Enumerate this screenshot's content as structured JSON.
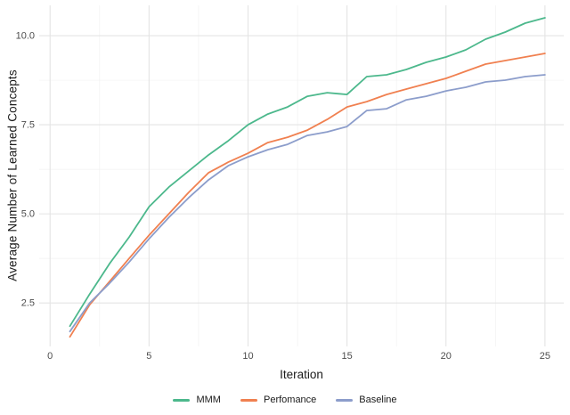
{
  "chart_data": {
    "type": "line",
    "title": "",
    "xlabel": "Iteration",
    "ylabel": "Average Number of Learned Concepts",
    "x": [
      1,
      2,
      3,
      4,
      5,
      6,
      7,
      8,
      9,
      10,
      11,
      12,
      13,
      14,
      15,
      16,
      17,
      18,
      19,
      20,
      21,
      22,
      23,
      24,
      25
    ],
    "series": [
      {
        "name": "MMM",
        "color": "#4cb88c",
        "values": [
          1.85,
          2.75,
          3.6,
          4.35,
          5.2,
          5.75,
          6.2,
          6.65,
          7.05,
          7.5,
          7.8,
          8.0,
          8.3,
          8.4,
          8.35,
          8.85,
          8.9,
          9.05,
          9.25,
          9.4,
          9.6,
          9.9,
          10.1,
          10.35,
          10.5
        ]
      },
      {
        "name": "Perfomance",
        "color": "#f08050",
        "values": [
          1.55,
          2.45,
          3.1,
          3.75,
          4.4,
          5.0,
          5.6,
          6.15,
          6.45,
          6.7,
          7.0,
          7.15,
          7.35,
          7.65,
          8.0,
          8.15,
          8.35,
          8.5,
          8.65,
          8.8,
          9.0,
          9.2,
          9.3,
          9.4,
          9.5
        ]
      },
      {
        "name": "Baseline",
        "color": "#8c9dcb",
        "values": [
          1.7,
          2.5,
          3.05,
          3.65,
          4.3,
          4.9,
          5.45,
          5.95,
          6.35,
          6.6,
          6.8,
          6.95,
          7.2,
          7.3,
          7.45,
          7.9,
          7.95,
          8.2,
          8.3,
          8.45,
          8.55,
          8.7,
          8.75,
          8.85,
          8.9
        ]
      }
    ],
    "xlim": [
      -0.55,
      25.95
    ],
    "ylim": [
      1.28,
      10.85
    ],
    "x_ticks": [
      0,
      5,
      10,
      15,
      20,
      25
    ],
    "x_tick_labels": [
      "0",
      "5",
      "10",
      "15",
      "20",
      "25"
    ],
    "y_ticks": [
      2.5,
      5.0,
      7.5,
      10.0
    ],
    "y_tick_labels": [
      "2.5",
      "5.0",
      "7.5",
      "10.0"
    ],
    "x_minor_ticks": [
      2.5,
      7.5,
      12.5,
      17.5,
      22.5
    ],
    "y_minor_ticks": [
      3.75,
      6.25,
      8.75
    ],
    "grid": true,
    "legend_position": "bottom",
    "line_width": 1.8,
    "colors": {
      "background": "#ffffff",
      "grid_major": "#e4e4e4",
      "grid_minor": "#f1f1f1",
      "tick_label": "#4d4d4d",
      "axis_title": "#1a1a1a"
    }
  }
}
